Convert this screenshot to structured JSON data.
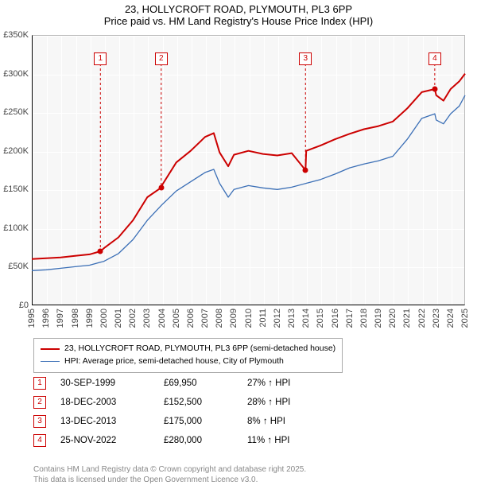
{
  "title": {
    "main": "23, HOLLYCROFT ROAD, PLYMOUTH, PL3 6PP",
    "sub": "Price paid vs. HM Land Registry's House Price Index (HPI)"
  },
  "chart": {
    "background_color": "#f7f7f7",
    "grid_color": "#ffffff",
    "series_price": {
      "label": "23, HOLLYCROFT ROAD, PLYMOUTH, PL3 6PP (semi-detached house)",
      "color": "#cc0000",
      "width": 2,
      "points": [
        [
          1995,
          60
        ],
        [
          1996,
          61
        ],
        [
          1997,
          62
        ],
        [
          1998,
          64
        ],
        [
          1999,
          66
        ],
        [
          1999.75,
          69.95
        ],
        [
          2000,
          74
        ],
        [
          2001,
          88
        ],
        [
          2002,
          110
        ],
        [
          2003,
          140
        ],
        [
          2003.96,
          152.5
        ],
        [
          2004,
          155
        ],
        [
          2005,
          185
        ],
        [
          2006,
          200
        ],
        [
          2007,
          218
        ],
        [
          2007.6,
          223
        ],
        [
          2008,
          198
        ],
        [
          2008.6,
          180
        ],
        [
          2009,
          195
        ],
        [
          2010,
          200
        ],
        [
          2011,
          196
        ],
        [
          2012,
          194
        ],
        [
          2013,
          197
        ],
        [
          2013.95,
          175
        ],
        [
          2014,
          200
        ],
        [
          2015,
          207
        ],
        [
          2016,
          215
        ],
        [
          2017,
          222
        ],
        [
          2018,
          228
        ],
        [
          2019,
          232
        ],
        [
          2020,
          238
        ],
        [
          2021,
          255
        ],
        [
          2022,
          276
        ],
        [
          2022.9,
          280
        ],
        [
          2023,
          272
        ],
        [
          2023.5,
          265
        ],
        [
          2024,
          280
        ],
        [
          2024.6,
          290
        ],
        [
          2025,
          300
        ]
      ]
    },
    "series_hpi": {
      "label": "HPI: Average price, semi-detached house, City of Plymouth",
      "color": "#3b6fb6",
      "width": 1.3,
      "points": [
        [
          1995,
          45
        ],
        [
          1996,
          46
        ],
        [
          1997,
          48
        ],
        [
          1998,
          50
        ],
        [
          1999,
          52
        ],
        [
          2000,
          57
        ],
        [
          2001,
          67
        ],
        [
          2002,
          85
        ],
        [
          2003,
          110
        ],
        [
          2004,
          130
        ],
        [
          2005,
          148
        ],
        [
          2006,
          160
        ],
        [
          2007,
          172
        ],
        [
          2007.6,
          176
        ],
        [
          2008,
          158
        ],
        [
          2008.6,
          140
        ],
        [
          2009,
          150
        ],
        [
          2010,
          155
        ],
        [
          2011,
          152
        ],
        [
          2012,
          150
        ],
        [
          2013,
          153
        ],
        [
          2014,
          158
        ],
        [
          2015,
          163
        ],
        [
          2016,
          170
        ],
        [
          2017,
          178
        ],
        [
          2018,
          183
        ],
        [
          2019,
          187
        ],
        [
          2020,
          193
        ],
        [
          2021,
          215
        ],
        [
          2022,
          242
        ],
        [
          2022.9,
          248
        ],
        [
          2023,
          240
        ],
        [
          2023.5,
          235
        ],
        [
          2024,
          248
        ],
        [
          2024.6,
          258
        ],
        [
          2025,
          272
        ]
      ]
    },
    "x_range": [
      1995,
      2025
    ],
    "y_range": [
      0,
      350
    ],
    "y_ticks": [
      0,
      50,
      100,
      150,
      200,
      250,
      300,
      350
    ],
    "y_tick_labels": [
      "£0",
      "£50K",
      "£100K",
      "£150K",
      "£200K",
      "£250K",
      "£300K",
      "£350K"
    ],
    "x_ticks": [
      1995,
      1996,
      1997,
      1998,
      1999,
      2000,
      2001,
      2002,
      2003,
      2004,
      2005,
      2006,
      2007,
      2008,
      2009,
      2010,
      2011,
      2012,
      2013,
      2014,
      2015,
      2016,
      2017,
      2018,
      2019,
      2020,
      2021,
      2022,
      2023,
      2024,
      2025
    ],
    "sale_markers": [
      {
        "n": "1",
        "year": 1999.75,
        "price": 69.95,
        "box_y": 30
      },
      {
        "n": "2",
        "year": 2003.96,
        "price": 152.5,
        "box_y": 30
      },
      {
        "n": "3",
        "year": 2013.95,
        "price": 175,
        "box_y": 30
      },
      {
        "n": "4",
        "year": 2022.9,
        "price": 280,
        "box_y": 30
      }
    ]
  },
  "legend": {
    "rows": [
      {
        "color": "#cc0000",
        "width": 2,
        "label": "23, HOLLYCROFT ROAD, PLYMOUTH, PL3 6PP (semi-detached house)"
      },
      {
        "color": "#3b6fb6",
        "width": 1.3,
        "label": "HPI: Average price, semi-detached house, City of Plymouth"
      }
    ]
  },
  "sales": [
    {
      "n": "1",
      "date": "30-SEP-1999",
      "price": "£69,950",
      "pct": "27% ↑ HPI"
    },
    {
      "n": "2",
      "date": "18-DEC-2003",
      "price": "£152,500",
      "pct": "28% ↑ HPI"
    },
    {
      "n": "3",
      "date": "13-DEC-2013",
      "price": "£175,000",
      "pct": "8% ↑ HPI"
    },
    {
      "n": "4",
      "date": "25-NOV-2022",
      "price": "£280,000",
      "pct": "11% ↑ HPI"
    }
  ],
  "footer": {
    "line1": "Contains HM Land Registry data © Crown copyright and database right 2025.",
    "line2": "This data is licensed under the Open Government Licence v3.0."
  }
}
